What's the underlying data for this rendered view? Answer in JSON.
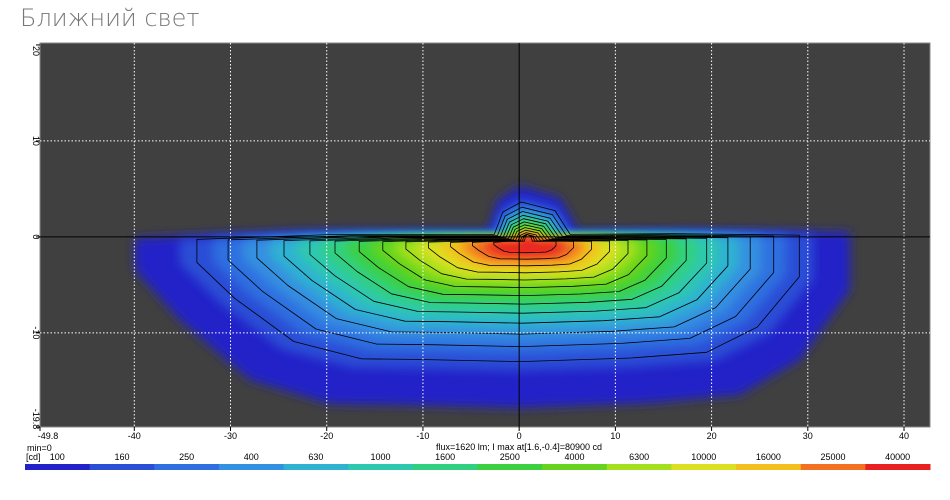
{
  "chart_data": {
    "type": "heatmap",
    "title": "Ближний свет",
    "xlim": [
      -49.8,
      42.7
    ],
    "xticks": [
      -49.8,
      -40,
      -30,
      -20,
      -10,
      0,
      10,
      20,
      30,
      40
    ],
    "ylim": [
      -19.8,
      20.2
    ],
    "yticks": [
      20,
      10,
      0,
      -10,
      -19.8
    ],
    "grid": true,
    "min_label": "min=0",
    "info": "flux=1620 lm; I max at[1.6,-0.4]=80900 cd",
    "color_scale": {
      "unit": "[cd]",
      "levels": [
        100,
        160,
        250,
        400,
        630,
        1000,
        1600,
        2500,
        4000,
        6300,
        10000,
        16000,
        25000,
        40000
      ],
      "colors": [
        "#2222c8",
        "#2a4ed6",
        "#2f6fe0",
        "#3490e0",
        "#2fb2d2",
        "#2dc8b0",
        "#30d080",
        "#3cd040",
        "#66d41e",
        "#a4e01e",
        "#dde020",
        "#f4bf1c",
        "#f27020",
        "#e82020"
      ]
    }
  }
}
